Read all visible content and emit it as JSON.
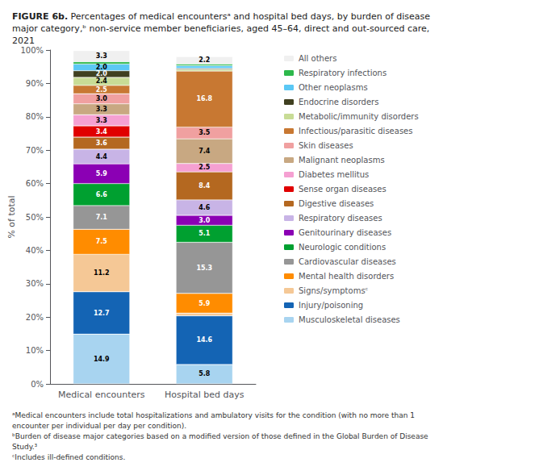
{
  "chart_data": {
    "type": "bar",
    "title": "FIGURE 6b.",
    "subtitle": "Percentages of medical encountersᵃ and hospital bed days, by burden of disease major category,ᵇ non-service member beneficiaries, aged 45–64, direct and out-sourced care, 2021",
    "categories": [
      "Medical encounters",
      "Hospital bed days"
    ],
    "ylabel": "% of total",
    "ylim": [
      0,
      100
    ],
    "yticks": [
      {
        "value": 0,
        "label": "0%"
      },
      {
        "value": 10,
        "label": "10%"
      },
      {
        "value": 20,
        "label": "20%"
      },
      {
        "value": 30,
        "label": "30%"
      },
      {
        "value": 40,
        "label": "40%"
      },
      {
        "value": 50,
        "label": "50%"
      },
      {
        "value": 60,
        "label": "60%"
      },
      {
        "value": 70,
        "label": "70%"
      },
      {
        "value": 80,
        "label": "80%"
      },
      {
        "value": 90,
        "label": "90%"
      },
      {
        "value": 100,
        "label": "100%"
      }
    ],
    "stacked": true,
    "data_labels": true,
    "grid": false,
    "legend": "right",
    "annotations": [
      "ᵃMedical encounters include total hospitalizations and ambulatory visits for the condition (with no more than 1 encounter per individual per day per condition).",
      "ᵇBurden of disease major categories based on a modified version of those defined in the Global Burden of Disease Study.³",
      "ᶜIncludes ill-defined conditions."
    ],
    "series": [
      {
        "name": "Musculoskeletal diseases",
        "color": "#a8d4f0",
        "values": [
          14.9,
          5.8
        ],
        "value_labels": [
          "14.9",
          "5.8"
        ]
      },
      {
        "name": "Injury/poisoning",
        "color": "#1464b4",
        "values": [
          12.7,
          14.6
        ],
        "value_labels": [
          "12.7",
          "14.6"
        ]
      },
      {
        "name": "Signs/symptomsᶜ",
        "color": "#f5c896",
        "values": [
          11.2,
          0.8
        ],
        "value_labels": [
          "11.2",
          null
        ]
      },
      {
        "name": "Mental health disorders",
        "color": "#ff8c00",
        "values": [
          7.5,
          5.9
        ],
        "value_labels": [
          "7.5",
          "5.9"
        ]
      },
      {
        "name": "Cardiovascular diseases",
        "color": "#969696",
        "values": [
          7.1,
          15.3
        ],
        "value_labels": [
          "7.1",
          "15.3"
        ]
      },
      {
        "name": "Neurologic conditions",
        "color": "#00a030",
        "values": [
          6.6,
          5.1
        ],
        "value_labels": [
          "6.6",
          "5.1"
        ]
      },
      {
        "name": "Genitourinary diseases",
        "color": "#8b00b4",
        "values": [
          5.9,
          3.0
        ],
        "value_labels": [
          "5.9",
          "3.0"
        ]
      },
      {
        "name": "Respiratory diseases",
        "color": "#c8b4e6",
        "values": [
          4.4,
          4.6
        ],
        "value_labels": [
          "4.4",
          "4.6"
        ]
      },
      {
        "name": "Digestive diseases",
        "color": "#b46820",
        "values": [
          3.6,
          8.4
        ],
        "value_labels": [
          "3.6",
          "8.4"
        ]
      },
      {
        "name": "Sense organ diseases",
        "color": "#e00000",
        "values": [
          3.4,
          null
        ],
        "value_labels": [
          "3.4",
          null
        ]
      },
      {
        "name": "Diabetes mellitus",
        "color": "#f5a0d2",
        "values": [
          3.3,
          2.5
        ],
        "value_labels": [
          "3.3",
          "2.5"
        ]
      },
      {
        "name": "Malignant neoplasms",
        "color": "#c8a882",
        "values": [
          3.3,
          7.4
        ],
        "value_labels": [
          "3.3",
          "7.4"
        ]
      },
      {
        "name": "Skin diseases",
        "color": "#f0a0a0",
        "values": [
          3.0,
          3.5
        ],
        "value_labels": [
          "3.0",
          "3.5"
        ]
      },
      {
        "name": "Infectious/parasitic diseases",
        "color": "#c87832",
        "values": [
          2.5,
          16.8
        ],
        "value_labels": [
          "2.5",
          "16.8"
        ]
      },
      {
        "name": "Metabolic/immunity disorders",
        "color": "#c8dc96",
        "values": [
          2.4,
          0.5
        ],
        "value_labels": [
          "2.4",
          null
        ]
      },
      {
        "name": "Endocrine disorders",
        "color": "#404020",
        "values": [
          2.0,
          0.3
        ],
        "value_labels": [
          "2.0",
          null
        ]
      },
      {
        "name": "Other neoplasms",
        "color": "#5bc8f5",
        "values": [
          2.0,
          0.8
        ],
        "value_labels": [
          "2.0",
          null
        ]
      },
      {
        "name": "Respiratory infections",
        "color": "#2db84b",
        "values": [
          0.7,
          0.5
        ],
        "value_labels": [
          null,
          null
        ]
      },
      {
        "name": "All others",
        "color": "#f0f0f0",
        "values": [
          3.3,
          2.2
        ],
        "value_labels": [
          "3.3",
          "2.2"
        ]
      }
    ]
  }
}
